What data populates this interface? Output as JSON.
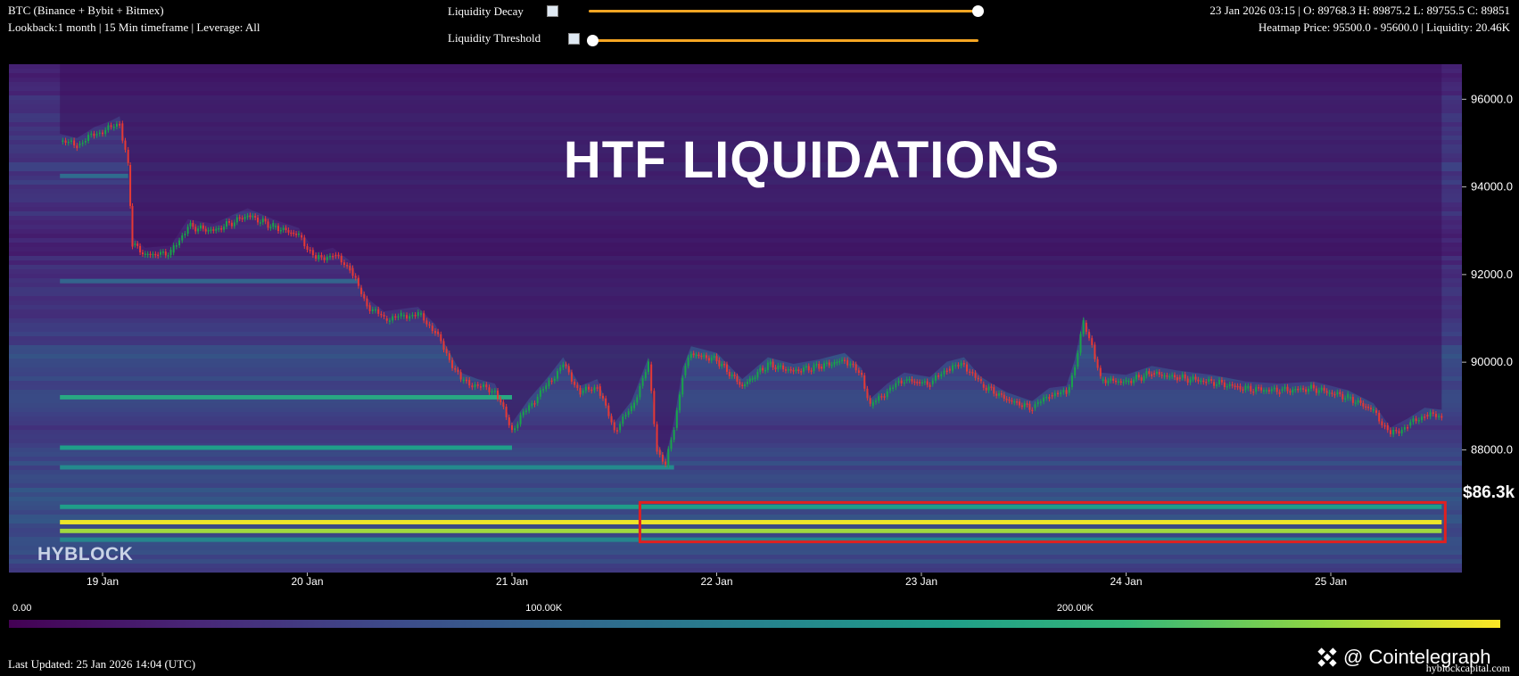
{
  "header": {
    "title": "BTC (Binance + Bybit + Bitmex)",
    "subtitle": "Lookback:1 month | 15 Min timeframe | Leverage: All",
    "ohlc": "23 Jan 2026 03:15 | O: 89768.3 H: 89875.2 L: 89755.5 C: 89851",
    "heatmap_info": "Heatmap Price: 95500.0 - 95600.0 | Liquidity: 20.46K"
  },
  "controls": {
    "decay_label": "Liquidity Decay",
    "decay_value": 1.0,
    "threshold_label": "Liquidity Threshold",
    "threshold_value": 0.0
  },
  "overlay": {
    "headline": "HTF LIQUIDATIONS",
    "highlight_label": "$86.3k",
    "watermark": "HYBLOCK"
  },
  "colors": {
    "accent_slider": "#f5a623",
    "highlight_box": "#e02020",
    "candle_up": "#19a34a",
    "candle_down": "#e53935"
  },
  "chart_data": {
    "type": "heatmap",
    "title": "HTF LIQUIDATIONS",
    "x_ticks": [
      "19 Jan",
      "20 Jan",
      "21 Jan",
      "22 Jan",
      "23 Jan",
      "24 Jan",
      "25 Jan"
    ],
    "y_ticks": [
      "96000.0",
      "94000.0",
      "92000.0",
      "90000.0",
      "88000.0"
    ],
    "ylim": [
      85200,
      96800
    ],
    "colorbar": {
      "tick_labels": [
        "0.00",
        "100.00K",
        "200.00K"
      ],
      "range": [
        0,
        280000
      ],
      "colormap": "viridis"
    },
    "price_series": {
      "name": "BTC",
      "points": [
        [
          "18 Jan 19:00",
          95050
        ],
        [
          "18 Jan 21:00",
          94950
        ],
        [
          "18 Jan 23:00",
          95200
        ],
        [
          "19 Jan 01:00",
          95350
        ],
        [
          "19 Jan 02:00",
          95450
        ],
        [
          "19 Jan 03:00",
          94500
        ],
        [
          "19 Jan 03:30",
          92700
        ],
        [
          "19 Jan 05:00",
          92450
        ],
        [
          "19 Jan 08:00",
          92500
        ],
        [
          "19 Jan 10:00",
          93100
        ],
        [
          "19 Jan 13:00",
          93000
        ],
        [
          "19 Jan 17:00",
          93350
        ],
        [
          "19 Jan 20:00",
          93100
        ],
        [
          "19 Jan 23:00",
          92900
        ],
        [
          "20 Jan 01:00",
          92350
        ],
        [
          "20 Jan 03:00",
          92450
        ],
        [
          "20 Jan 05:00",
          92150
        ],
        [
          "20 Jan 06:00",
          91700
        ],
        [
          "20 Jan 07:00",
          91300
        ],
        [
          "20 Jan 09:00",
          91000
        ],
        [
          "20 Jan 11:00",
          91050
        ],
        [
          "20 Jan 13:00",
          91100
        ],
        [
          "20 Jan 15:00",
          90700
        ],
        [
          "20 Jan 16:00",
          90300
        ],
        [
          "20 Jan 18:00",
          89600
        ],
        [
          "20 Jan 20:00",
          89450
        ],
        [
          "20 Jan 22:00",
          89350
        ],
        [
          "21 Jan 00:00",
          88450
        ],
        [
          "21 Jan 02:00",
          89000
        ],
        [
          "21 Jan 04:00",
          89450
        ],
        [
          "21 Jan 06:00",
          89950
        ],
        [
          "21 Jan 08:00",
          89300
        ],
        [
          "21 Jan 10:00",
          89450
        ],
        [
          "21 Jan 12:00",
          88450
        ],
        [
          "21 Jan 14:00",
          88950
        ],
        [
          "21 Jan 16:00",
          89950
        ],
        [
          "21 Jan 17:00",
          88000
        ],
        [
          "21 Jan 18:00",
          87650
        ],
        [
          "21 Jan 19:00",
          88500
        ],
        [
          "21 Jan 20:00",
          89700
        ],
        [
          "21 Jan 21:00",
          90200
        ],
        [
          "22 Jan 00:00",
          90050
        ],
        [
          "22 Jan 03:00",
          89450
        ],
        [
          "22 Jan 06:00",
          89950
        ],
        [
          "22 Jan 09:00",
          89800
        ],
        [
          "22 Jan 12:00",
          89900
        ],
        [
          "22 Jan 15:00",
          90050
        ],
        [
          "22 Jan 17:00",
          89700
        ],
        [
          "22 Jan 18:00",
          89000
        ],
        [
          "22 Jan 20:00",
          89350
        ],
        [
          "22 Jan 22:00",
          89600
        ],
        [
          "23 Jan 01:00",
          89500
        ],
        [
          "23 Jan 03:00",
          89850
        ],
        [
          "23 Jan 05:00",
          89950
        ],
        [
          "23 Jan 07:00",
          89500
        ],
        [
          "23 Jan 10:00",
          89150
        ],
        [
          "23 Jan 13:00",
          88950
        ],
        [
          "23 Jan 15:00",
          89250
        ],
        [
          "23 Jan 17:00",
          89300
        ],
        [
          "23 Jan 18:00",
          89900
        ],
        [
          "23 Jan 19:00",
          90900
        ],
        [
          "23 Jan 20:00",
          90400
        ],
        [
          "23 Jan 21:00",
          89600
        ],
        [
          "24 Jan 00:00",
          89550
        ],
        [
          "24 Jan 03:00",
          89750
        ],
        [
          "24 Jan 06:00",
          89650
        ],
        [
          "24 Jan 10:00",
          89550
        ],
        [
          "24 Jan 14:00",
          89400
        ],
        [
          "24 Jan 18:00",
          89350
        ],
        [
          "24 Jan 22:00",
          89400
        ],
        [
          "25 Jan 02:00",
          89200
        ],
        [
          "25 Jan 05:00",
          88900
        ],
        [
          "25 Jan 07:00",
          88350
        ],
        [
          "25 Jan 09:00",
          88550
        ],
        [
          "25 Jan 11:00",
          88800
        ],
        [
          "25 Jan 13:00",
          88750
        ]
      ]
    },
    "bands": [
      {
        "low": 94200,
        "high": 94300,
        "from": "18 Jan 19:00",
        "to": "19 Jan 03:00",
        "value": 110000
      },
      {
        "low": 91800,
        "high": 91900,
        "from": "18 Jan 19:00",
        "to": "20 Jan 06:00",
        "value": 100000
      },
      {
        "low": 89150,
        "high": 89250,
        "from": "18 Jan 19:00",
        "to": "21 Jan 00:00",
        "value": 190000
      },
      {
        "low": 88000,
        "high": 88100,
        "from": "18 Jan 19:00",
        "to": "21 Jan 00:00",
        "value": 175000
      },
      {
        "low": 87550,
        "high": 87650,
        "from": "18 Jan 19:00",
        "to": "21 Jan 19:00",
        "value": 150000
      },
      {
        "low": 86650,
        "high": 86750,
        "from": "18 Jan 19:00",
        "to": "25 Jan 13:00",
        "value": 175000
      },
      {
        "low": 86300,
        "high": 86400,
        "from": "18 Jan 19:00",
        "to": "25 Jan 13:00",
        "value": 275000
      },
      {
        "low": 86100,
        "high": 86200,
        "from": "18 Jan 19:00",
        "to": "25 Jan 13:00",
        "value": 250000
      },
      {
        "low": 85900,
        "high": 86000,
        "from": "18 Jan 19:00",
        "to": "25 Jan 13:00",
        "value": 145000
      }
    ],
    "highlight": {
      "low": 85900,
      "high": 86800,
      "from": "21 Jan 15:00",
      "to": "25 Jan 13:00",
      "label": "$86.3k"
    }
  },
  "footer": {
    "last_updated": "Last Updated: 25 Jan 2026 14:04 (UTC)",
    "brand": "@ Cointelegraph",
    "site": "hyblockcapital.com"
  }
}
